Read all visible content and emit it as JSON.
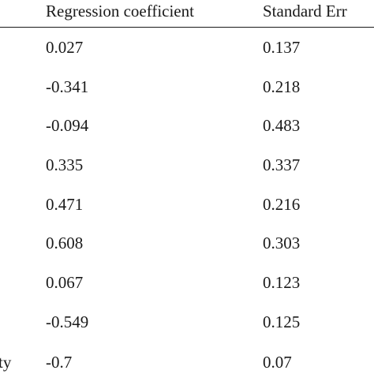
{
  "table": {
    "columns": [
      {
        "label": ""
      },
      {
        "label": "Regression coefficient"
      },
      {
        "label": "Standard Err"
      }
    ],
    "rows": [
      {
        "label": "",
        "coefficient": "0.027",
        "standard_error": "0.137"
      },
      {
        "label": "",
        "coefficient": "-0.341",
        "standard_error": "0.218"
      },
      {
        "label": "",
        "coefficient": "-0.094",
        "standard_error": "0.483"
      },
      {
        "label": "",
        "coefficient": "0.335",
        "standard_error": "0.337"
      },
      {
        "label": "",
        "coefficient": "0.471",
        "standard_error": "0.216"
      },
      {
        "label": "",
        "coefficient": "0.608",
        "standard_error": "0.303"
      },
      {
        "label": "",
        "coefficient": "0.067",
        "standard_error": "0.123"
      },
      {
        "label": "",
        "coefficient": "-0.549",
        "standard_error": "0.125"
      },
      {
        "label": "ty",
        "coefficient": "-0.7",
        "standard_error": "0.07"
      }
    ]
  }
}
